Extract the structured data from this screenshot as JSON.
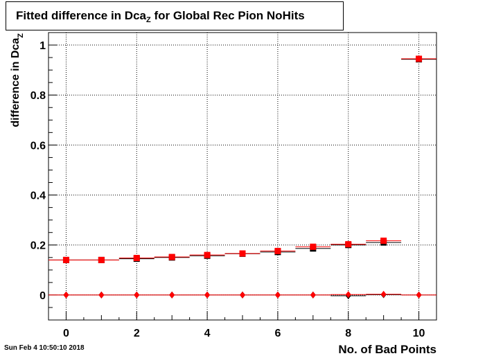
{
  "title": {
    "main": "Fitted difference in Dca",
    "sub": "Z",
    "tail": " for Global Rec Pion NoHits"
  },
  "timestamp": "Sun Feb  4 10:50:10 2018",
  "colors": {
    "series_red": "#ff0000",
    "series_black": "#000000",
    "grid": "#000000"
  },
  "chart_data": {
    "type": "scatter",
    "xlabel": "No. of Bad Points",
    "ylabel_main": "difference in Dca",
    "ylabel_sub": "Z",
    "xlim": [
      -0.5,
      10.5
    ],
    "ylim": [
      -0.1,
      1.05
    ],
    "x_ticks": [
      0,
      2,
      4,
      6,
      8,
      10
    ],
    "x_tick_labels": [
      "0",
      "2",
      "4",
      "6",
      "8",
      "10"
    ],
    "y_ticks": [
      0,
      0.2,
      0.4,
      0.6,
      0.8,
      1
    ],
    "y_tick_labels": [
      "0",
      "0.2",
      "0.4",
      "0.6",
      "0.8",
      "1"
    ],
    "grid": true,
    "series": [
      {
        "marker": "square",
        "color": "#000000",
        "x": [
          0,
          1,
          2,
          3,
          4,
          5,
          6,
          7,
          8,
          9,
          10
        ],
        "y": [
          0.14,
          0.14,
          0.145,
          0.15,
          0.157,
          0.165,
          0.172,
          0.186,
          0.2,
          0.21,
          0.943
        ]
      },
      {
        "marker": "square",
        "color": "#ff0000",
        "x": [
          0,
          1,
          2,
          3,
          4,
          5,
          6,
          7,
          8,
          9,
          10
        ],
        "y": [
          0.14,
          0.14,
          0.148,
          0.152,
          0.16,
          0.166,
          0.176,
          0.193,
          0.203,
          0.217,
          0.945
        ]
      },
      {
        "marker": "diamond",
        "color": "#000000",
        "x": [
          0,
          1,
          2,
          3,
          4,
          5,
          6,
          7,
          8,
          9,
          10
        ],
        "y": [
          0,
          0,
          0,
          0,
          0,
          0,
          0,
          0,
          -0.003,
          0.001,
          0
        ]
      },
      {
        "marker": "diamond",
        "color": "#ff0000",
        "x": [
          0,
          1,
          2,
          3,
          4,
          5,
          6,
          7,
          8,
          9,
          10
        ],
        "y": [
          0,
          0,
          0,
          0,
          0,
          0,
          0,
          0,
          0.002,
          0.003,
          0
        ]
      }
    ]
  }
}
